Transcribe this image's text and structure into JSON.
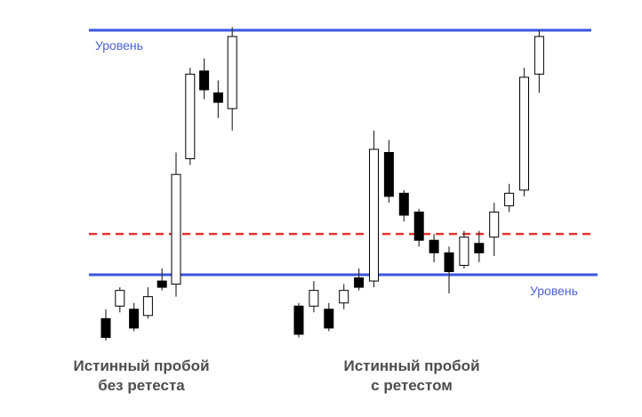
{
  "labels": {
    "level_top": "Уровень",
    "level_bottom": "Уровень"
  },
  "captions": {
    "left_line1": "Истинный пробой",
    "left_line2": "без ретеста",
    "right_line1": "Истинный пробой",
    "right_line2": "с ретестом"
  },
  "colors": {
    "level_line": "#3b55e0",
    "retest_line": "#e8322f",
    "bull_candle_fill": "#ffffff",
    "bear_candle_fill": "#000000",
    "candle_outline": "#000000",
    "wick": "#333333"
  },
  "chart_data": {
    "type": "candlestick",
    "title": "",
    "xlabel": "",
    "ylabel": "",
    "ylim": [
      0,
      100
    ],
    "levels": [
      {
        "value": 92,
        "style": "solid"
      },
      {
        "value": 14,
        "style": "solid"
      },
      {
        "value": 27,
        "style": "dashed"
      }
    ],
    "series": [
      {
        "candles": [
          {
            "x": 1,
            "open": 0,
            "high": 3,
            "low": -7,
            "close": -6
          },
          {
            "x": 2,
            "open": 4,
            "high": 10,
            "low": 2,
            "close": 9
          },
          {
            "x": 3,
            "open": 3,
            "high": 5,
            "low": -4,
            "close": -3
          },
          {
            "x": 4,
            "open": 1,
            "high": 10,
            "low": 0,
            "close": 7
          },
          {
            "x": 5,
            "open": 12,
            "high": 16,
            "low": 9,
            "close": 10
          },
          {
            "x": 6,
            "open": 11,
            "high": 53,
            "low": 7,
            "close": 46
          },
          {
            "x": 7,
            "open": 51,
            "high": 80,
            "low": 49,
            "close": 78
          },
          {
            "x": 8,
            "open": 79,
            "high": 83,
            "low": 70,
            "close": 73
          },
          {
            "x": 9,
            "open": 72,
            "high": 76,
            "low": 64,
            "close": 69
          },
          {
            "x": 10,
            "open": 67,
            "high": 93,
            "low": 60,
            "close": 90
          }
        ]
      },
      {
        "candles": [
          {
            "x": 1,
            "open": 4,
            "high": 5,
            "low": -6,
            "close": -5
          },
          {
            "x": 2,
            "open": 4,
            "high": 12,
            "low": 2,
            "close": 9
          },
          {
            "x": 3,
            "open": 3,
            "high": 5,
            "low": -4,
            "close": -3
          },
          {
            "x": 4,
            "open": 5,
            "high": 11,
            "low": 3,
            "close": 9
          },
          {
            "x": 5,
            "open": 13,
            "high": 16,
            "low": 9,
            "close": 10
          },
          {
            "x": 6,
            "open": 12,
            "high": 60,
            "low": 10,
            "close": 54
          },
          {
            "x": 7,
            "open": 53,
            "high": 57,
            "low": 37,
            "close": 39
          },
          {
            "x": 8,
            "open": 40,
            "high": 41,
            "low": 31,
            "close": 33
          },
          {
            "x": 9,
            "open": 34,
            "high": 35,
            "low": 23,
            "close": 25
          },
          {
            "x": 10,
            "open": 25,
            "high": 27,
            "low": 18,
            "close": 21
          },
          {
            "x": 11,
            "open": 21,
            "high": 23,
            "low": 8,
            "close": 15
          },
          {
            "x": 12,
            "open": 17,
            "high": 28,
            "low": 16,
            "close": 26
          },
          {
            "x": 13,
            "open": 24,
            "high": 28,
            "low": 18,
            "close": 21
          },
          {
            "x": 14,
            "open": 26,
            "high": 37,
            "low": 20,
            "close": 34
          },
          {
            "x": 15,
            "open": 36,
            "high": 43,
            "low": 34,
            "close": 40
          },
          {
            "x": 16,
            "open": 41,
            "high": 80,
            "low": 39,
            "close": 77
          },
          {
            "x": 17,
            "open": 78,
            "high": 92,
            "low": 72,
            "close": 90
          }
        ]
      }
    ]
  }
}
